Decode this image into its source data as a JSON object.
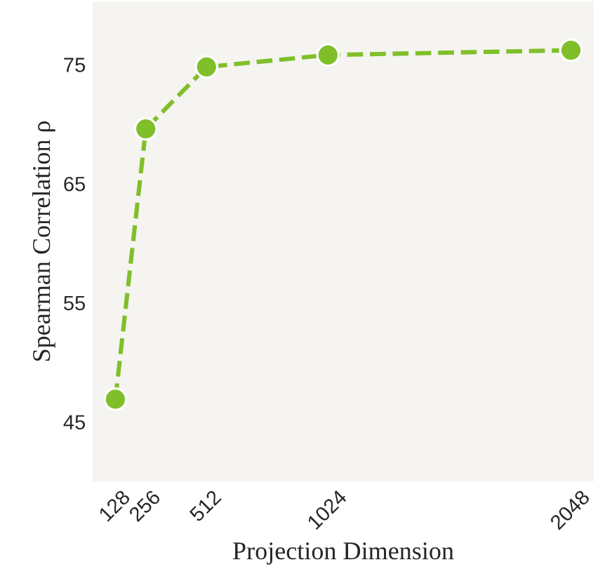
{
  "chart_data": {
    "type": "line",
    "xlabel": "Projection Dimension",
    "ylabel": "Spearman Correlation ρ",
    "x": [
      128,
      256,
      512,
      1024,
      2048
    ],
    "series": [
      {
        "color": "#80bf2a",
        "values": [
          46.9,
          69.6,
          74.8,
          75.8,
          76.2
        ]
      }
    ],
    "xlim": [
      32,
      2144
    ],
    "xticks": [
      128,
      256,
      512,
      1024,
      2048
    ],
    "ylim": [
      40,
      80.3
    ],
    "yticks": [
      45,
      55,
      65,
      75
    ],
    "marker": "circle",
    "line_style": "dashed",
    "grid": false
  }
}
